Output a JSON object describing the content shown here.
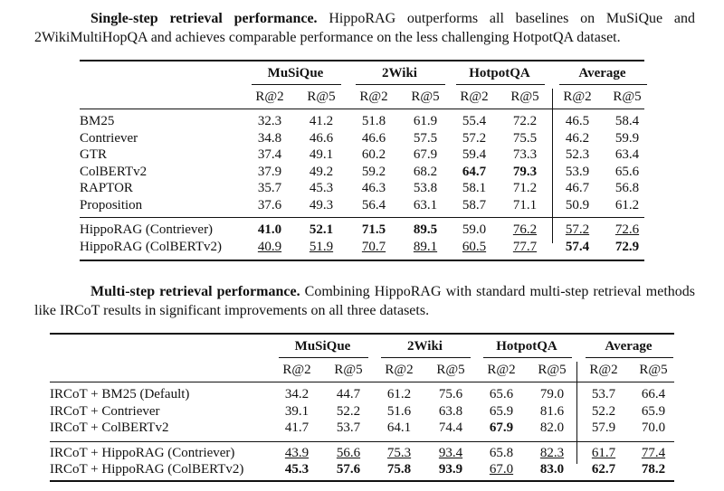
{
  "captions": [
    {
      "title": "Single-step retrieval performance.",
      "text": "HippoRAG outperforms all baselines on MuSiQue and 2WikiMultiHopQA and achieves comparable performance on the less challenging HotpotQA dataset."
    },
    {
      "title": "Multi-step retrieval performance.",
      "text": "Combining HippoRAG with standard multi-step retrieval methods like IRCoT results in significant improvements on all three datasets."
    }
  ],
  "tables": [
    {
      "groups": [
        "MuSiQue",
        "2Wiki",
        "HotpotQA",
        "Average"
      ],
      "metrics": [
        "R@2",
        "R@5",
        "R@2",
        "R@5",
        "R@2",
        "R@5",
        "R@2",
        "R@5"
      ],
      "row_groups": [
        [
          {
            "name": "BM25",
            "cells": [
              "32.3",
              "41.2",
              "51.8",
              "61.9",
              "55.4",
              "72.2",
              "46.5",
              "58.4"
            ]
          },
          {
            "name": "Contriever",
            "cells": [
              "34.8",
              "46.6",
              "46.6",
              "57.5",
              "57.2",
              "75.5",
              "46.2",
              "59.9"
            ]
          },
          {
            "name": "GTR",
            "cells": [
              "37.4",
              "49.1",
              "60.2",
              "67.9",
              "59.4",
              "73.3",
              "52.3",
              "63.4"
            ]
          },
          {
            "name": "ColBERTv2",
            "cells": [
              "37.9",
              "49.2",
              "59.2",
              "68.2",
              "64.7",
              "79.3",
              "53.9",
              "65.6"
            ],
            "bold": [
              4,
              5
            ]
          },
          {
            "name": "RAPTOR",
            "cells": [
              "35.7",
              "45.3",
              "46.3",
              "53.8",
              "58.1",
              "71.2",
              "46.7",
              "56.8"
            ]
          },
          {
            "name": "Proposition",
            "cells": [
              "37.6",
              "49.3",
              "56.4",
              "63.1",
              "58.7",
              "71.1",
              "50.9",
              "61.2"
            ]
          }
        ],
        [
          {
            "name": "HippoRAG (Contriever)",
            "cells": [
              "41.0",
              "52.1",
              "71.5",
              "89.5",
              "59.0",
              "76.2",
              "57.2",
              "72.6"
            ],
            "bold": [
              0,
              1,
              2,
              3
            ],
            "underline": [
              5,
              6,
              7
            ]
          },
          {
            "name": "HippoRAG (ColBERTv2)",
            "cells": [
              "40.9",
              "51.9",
              "70.7",
              "89.1",
              "60.5",
              "77.7",
              "57.4",
              "72.9"
            ],
            "bold": [
              6,
              7
            ],
            "underline": [
              0,
              1,
              2,
              3,
              4,
              5
            ]
          }
        ]
      ]
    },
    {
      "groups": [
        "MuSiQue",
        "2Wiki",
        "HotpotQA",
        "Average"
      ],
      "metrics": [
        "R@2",
        "R@5",
        "R@2",
        "R@5",
        "R@2",
        "R@5",
        "R@2",
        "R@5"
      ],
      "row_groups": [
        [
          {
            "name": "IRCoT + BM25 (Default)",
            "cells": [
              "34.2",
              "44.7",
              "61.2",
              "75.6",
              "65.6",
              "79.0",
              "53.7",
              "66.4"
            ]
          },
          {
            "name": "IRCoT + Contriever",
            "cells": [
              "39.1",
              "52.2",
              "51.6",
              "63.8",
              "65.9",
              "81.6",
              "52.2",
              "65.9"
            ]
          },
          {
            "name": "IRCoT + ColBERTv2",
            "cells": [
              "41.7",
              "53.7",
              "64.1",
              "74.4",
              "67.9",
              "82.0",
              "57.9",
              "70.0"
            ],
            "bold": [
              4
            ]
          }
        ],
        [
          {
            "name": "IRCoT + HippoRAG (Contriever)",
            "cells": [
              "43.9",
              "56.6",
              "75.3",
              "93.4",
              "65.8",
              "82.3",
              "61.7",
              "77.4"
            ],
            "underline": [
              0,
              1,
              2,
              3,
              5,
              6,
              7
            ]
          },
          {
            "name": "IRCoT + HippoRAG (ColBERTv2)",
            "cells": [
              "45.3",
              "57.6",
              "75.8",
              "93.9",
              "67.0",
              "83.0",
              "62.7",
              "78.2"
            ],
            "bold": [
              0,
              1,
              2,
              3,
              5,
              6,
              7
            ],
            "underline": [
              4
            ]
          }
        ]
      ]
    }
  ]
}
